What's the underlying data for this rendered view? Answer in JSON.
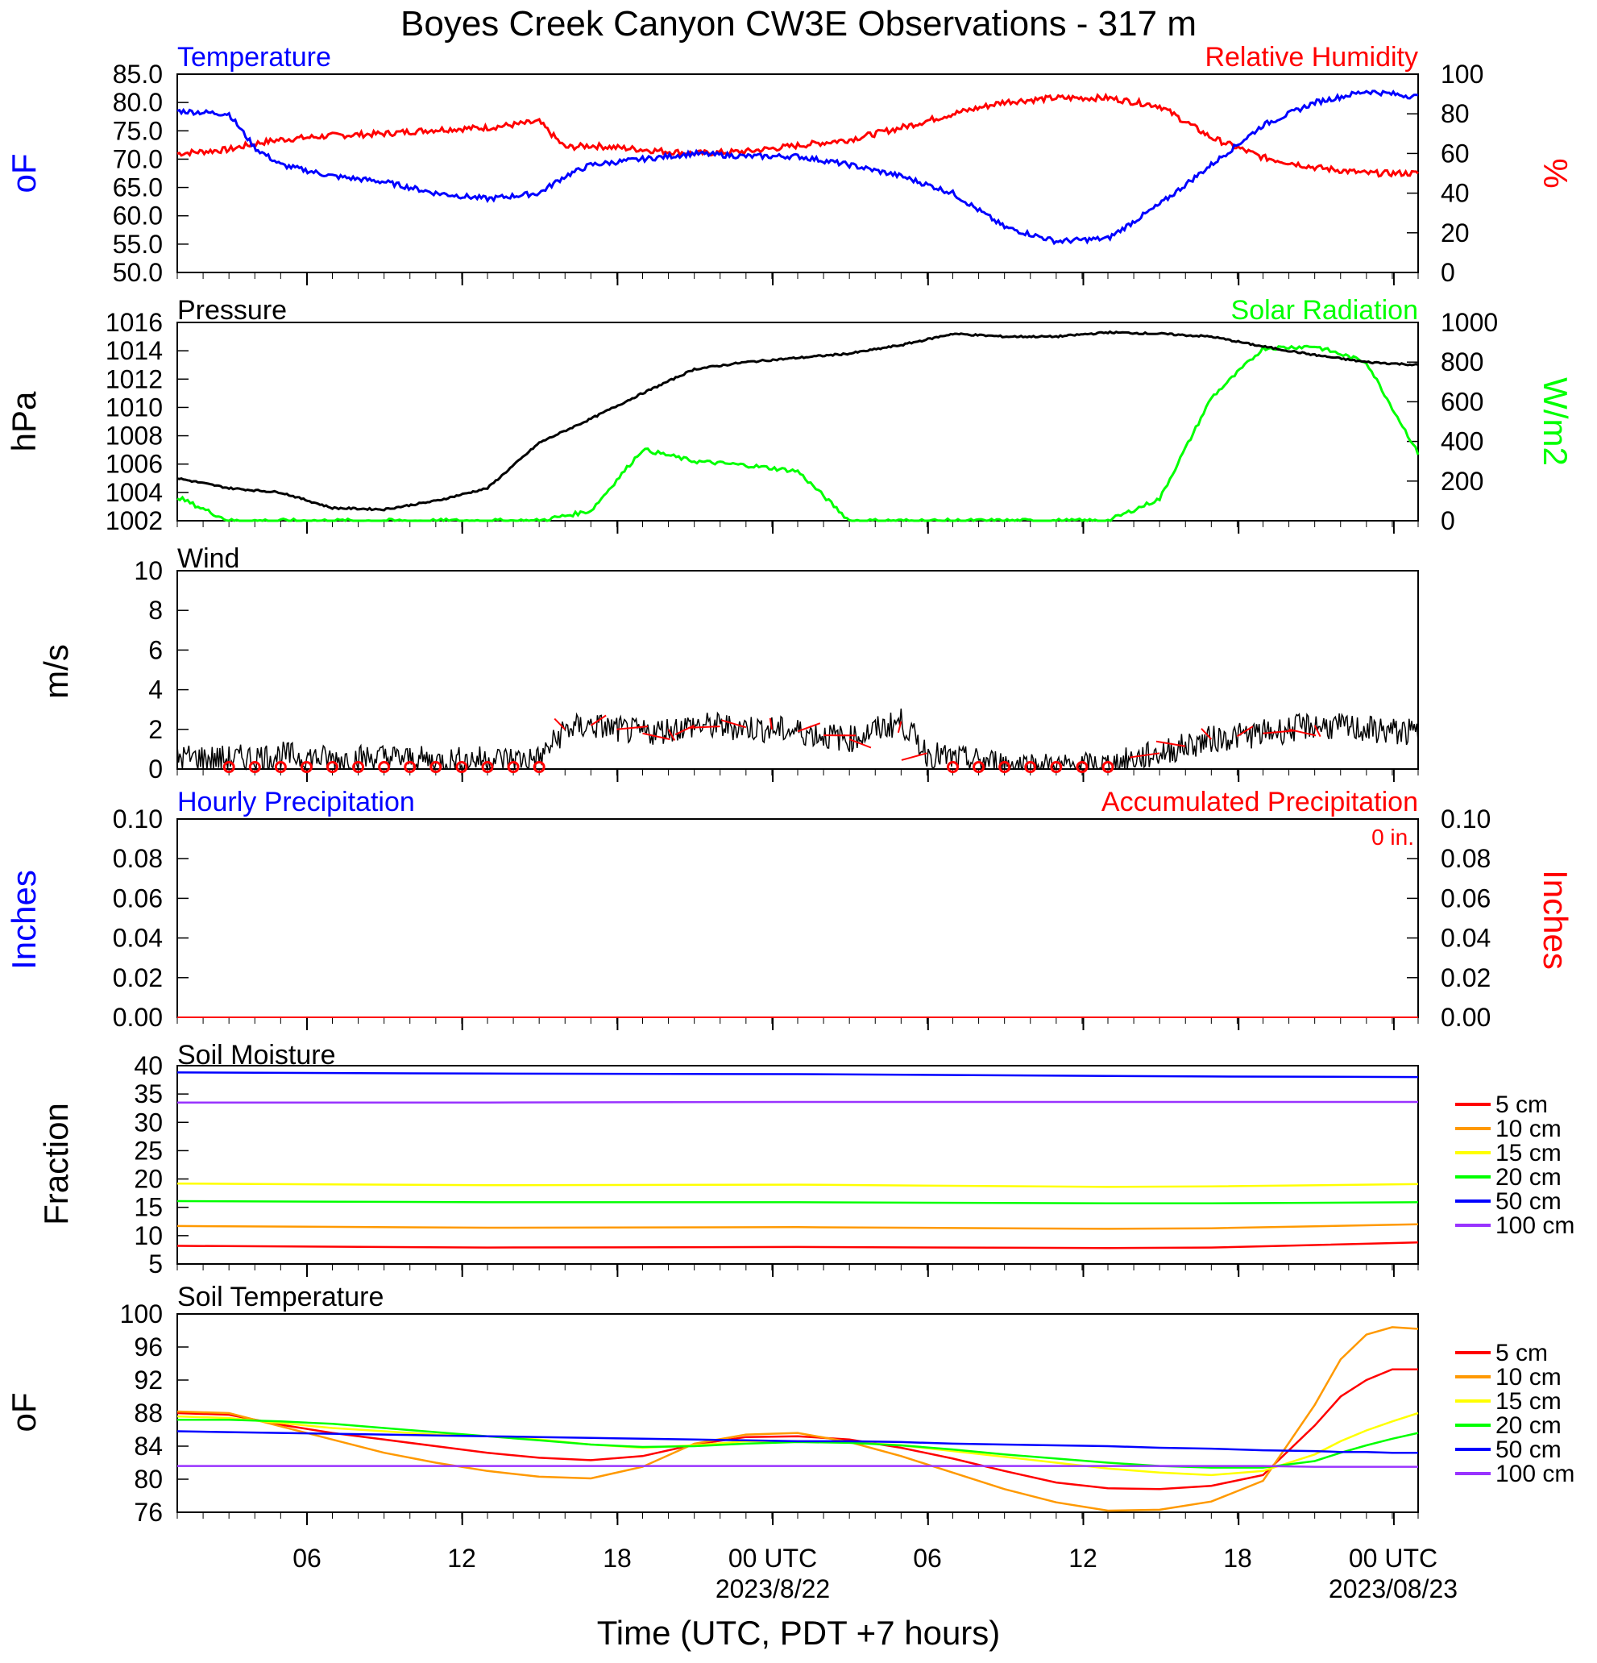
{
  "title": "Boyes Creek Canyon CW3E Observations - 317 m",
  "x_axis": {
    "label": "Time (UTC, PDT +7 hours)",
    "tick_labels": [
      "06",
      "12",
      "18",
      "00 UTC",
      "06",
      "12",
      "18",
      "00 UTC"
    ],
    "date_labels": [
      "2023/8/22",
      "2023/08/23"
    ]
  },
  "legend_soil": [
    "5 cm",
    "10 cm",
    "15 cm",
    "20 cm",
    "50 cm",
    "100 cm"
  ],
  "colors": {
    "temperature": "#0000ff",
    "humidity": "#ff0000",
    "pressure": "#000000",
    "solar": "#00ff00",
    "wind": "#000000",
    "wind_barb": "#ff0000",
    "depths": [
      "#ff0000",
      "#ff9900",
      "#ffff00",
      "#00ff00",
      "#0000ff",
      "#9933ff"
    ]
  },
  "panels": {
    "temp_rh": {
      "left_title": "Temperature",
      "right_title": "Relative Humidity",
      "left_unit": "oF",
      "right_unit": "%",
      "left_ticks": [
        "85.0",
        "80.0",
        "75.0",
        "70.0",
        "65.0",
        "60.0",
        "55.0",
        "50.0"
      ],
      "right_ticks": [
        "100",
        "80",
        "60",
        "40",
        "20",
        "0"
      ]
    },
    "pressure_solar": {
      "left_title": "Pressure",
      "right_title": "Solar Radiation",
      "left_unit": "hPa",
      "right_unit": "W/m2",
      "left_ticks": [
        "1016",
        "1014",
        "1012",
        "1010",
        "1008",
        "1006",
        "1004",
        "1002"
      ],
      "right_ticks": [
        "1000",
        "800",
        "600",
        "400",
        "200",
        "0"
      ]
    },
    "wind": {
      "left_title": "Wind",
      "left_unit": "m/s",
      "left_ticks": [
        "10",
        "8",
        "6",
        "4",
        "2",
        "0"
      ]
    },
    "precip": {
      "left_title": "Hourly Precipitation",
      "right_title": "Accumulated Precipitation",
      "accum_text": "0 in.",
      "left_unit": "Inches",
      "right_unit": "Inches",
      "left_ticks": [
        "0.10",
        "0.08",
        "0.06",
        "0.04",
        "0.02",
        "0.00"
      ],
      "right_ticks": [
        "0.10",
        "0.08",
        "0.06",
        "0.04",
        "0.02",
        "0.00"
      ]
    },
    "soil_moisture": {
      "left_title": "Soil Moisture",
      "left_unit": "Fraction",
      "left_ticks": [
        "40",
        "35",
        "30",
        "25",
        "20",
        "15",
        "10",
        "5"
      ]
    },
    "soil_temp": {
      "left_title": "Soil Temperature",
      "left_unit": "oF",
      "left_ticks": [
        "100",
        "96",
        "92",
        "88",
        "84",
        "80",
        "76"
      ]
    }
  },
  "chart_data": [
    {
      "type": "line",
      "title": "Temperature / Relative Humidity",
      "x": [
        0,
        2,
        3,
        4,
        6,
        8,
        10,
        12,
        14,
        15,
        16,
        18,
        20,
        22,
        24,
        26,
        28,
        30,
        32,
        34,
        36,
        38,
        40,
        42,
        44,
        46,
        48
      ],
      "series": [
        {
          "name": "Temperature",
          "axis": "left",
          "values": [
            78.5,
            78,
            72,
            69,
            67,
            66,
            64,
            63,
            64,
            67,
            69,
            70,
            71,
            70.5,
            70.5,
            69,
            67,
            64,
            58,
            55.5,
            56,
            62,
            69,
            76,
            80,
            82,
            81
          ]
        },
        {
          "name": "Relative Humidity",
          "axis": "right",
          "values": [
            60,
            62,
            65,
            67,
            69,
            70,
            72,
            73,
            76,
            63,
            64,
            62,
            60,
            61,
            64,
            67,
            73,
            80,
            86,
            88,
            88,
            84,
            68,
            58,
            53,
            50,
            50
          ]
        }
      ],
      "ylim_left": [
        50,
        85
      ],
      "ylim_right": [
        0,
        100
      ]
    },
    {
      "type": "line",
      "title": "Pressure / Solar Radiation",
      "x": [
        0,
        2,
        4,
        6,
        8,
        10,
        12,
        14,
        16,
        18,
        20,
        22,
        24,
        26,
        28,
        30,
        32,
        34,
        36,
        38,
        40,
        42,
        44,
        46,
        48
      ],
      "series": [
        {
          "name": "Pressure",
          "axis": "left",
          "values": [
            1005,
            1004.3,
            1004,
            1002.9,
            1002.8,
            1003.4,
            1004.3,
            1007.5,
            1009.2,
            1011,
            1012.7,
            1013.2,
            1013.5,
            1013.8,
            1014.4,
            1015.2,
            1015,
            1015,
            1015.3,
            1015.2,
            1015,
            1014.3,
            1013.7,
            1013.2,
            1013
          ]
        },
        {
          "name": "Solar Radiation",
          "axis": "right",
          "values": [
            120,
            0,
            0,
            0,
            0,
            0,
            0,
            0,
            50,
            360,
            300,
            280,
            250,
            0,
            0,
            0,
            0,
            0,
            0,
            110,
            620,
            870,
            880,
            800,
            340
          ]
        }
      ],
      "ylim_left": [
        1002,
        1016
      ],
      "ylim_right": [
        0,
        1000
      ]
    },
    {
      "type": "line",
      "title": "Wind",
      "x": [
        0,
        2,
        4,
        6,
        8,
        10,
        12,
        14,
        15,
        16,
        18,
        20,
        22,
        24,
        26,
        28,
        29,
        30,
        32,
        34,
        36,
        38,
        40,
        42,
        44,
        46,
        48
      ],
      "values": [
        0.6,
        0.5,
        0.7,
        0.5,
        0.6,
        0.4,
        0.5,
        0.5,
        2.0,
        2.2,
        1.8,
        2.2,
        2.1,
        1.9,
        1.5,
        2.4,
        0.8,
        0.5,
        0.3,
        0.1,
        0.2,
        0.8,
        1.5,
        1.8,
        2.2,
        2.0,
        1.8
      ],
      "ylim": [
        0,
        10
      ]
    },
    {
      "type": "line",
      "title": "Precipitation",
      "x": [
        0,
        48
      ],
      "series": [
        {
          "name": "Hourly Precipitation",
          "values": [
            0,
            0
          ]
        },
        {
          "name": "Accumulated Precipitation",
          "values": [
            0,
            0
          ]
        }
      ],
      "ylim": [
        0,
        0.1
      ]
    },
    {
      "type": "line",
      "title": "Soil Moisture",
      "x": [
        0,
        12,
        24,
        36,
        40,
        48
      ],
      "series": [
        {
          "name": "5 cm",
          "values": [
            8.2,
            7.9,
            8.0,
            7.8,
            7.9,
            8.8
          ]
        },
        {
          "name": "10 cm",
          "values": [
            11.7,
            11.4,
            11.5,
            11.2,
            11.3,
            12.0
          ]
        },
        {
          "name": "15 cm",
          "values": [
            19.2,
            18.9,
            19.0,
            18.6,
            18.7,
            19.1
          ]
        },
        {
          "name": "20 cm",
          "values": [
            16.1,
            15.9,
            15.9,
            15.7,
            15.7,
            15.9
          ]
        },
        {
          "name": "50 cm",
          "values": [
            38.8,
            38.6,
            38.5,
            38.2,
            38.1,
            38.0
          ]
        },
        {
          "name": "100 cm",
          "values": [
            33.5,
            33.5,
            33.6,
            33.6,
            33.6,
            33.6
          ]
        }
      ],
      "ylim": [
        5,
        40
      ]
    },
    {
      "type": "line",
      "title": "Soil Temperature",
      "x": [
        0,
        2,
        4,
        6,
        8,
        10,
        12,
        14,
        16,
        18,
        20,
        22,
        24,
        26,
        28,
        30,
        32,
        34,
        36,
        38,
        40,
        42,
        44,
        45,
        46,
        47,
        48
      ],
      "series": [
        {
          "name": "5 cm",
          "values": [
            88,
            87.8,
            86.6,
            85.6,
            84.8,
            84,
            83.2,
            82.6,
            82.3,
            82.8,
            84.2,
            85.1,
            85.2,
            84.8,
            83.8,
            82.5,
            81,
            79.6,
            78.9,
            78.8,
            79.2,
            80.5,
            86.5,
            90,
            92,
            93.3,
            93.3
          ]
        },
        {
          "name": "10 cm",
          "values": [
            88.2,
            88,
            86.4,
            84.8,
            83.2,
            82,
            81,
            80.3,
            80.1,
            81.5,
            84.3,
            85.4,
            85.6,
            84.5,
            82.8,
            80.8,
            78.8,
            77.2,
            76.2,
            76.3,
            77.3,
            79.8,
            89,
            94.5,
            97.5,
            98.4,
            98.2
          ]
        },
        {
          "name": "15 cm",
          "values": [
            87.6,
            87.4,
            86.8,
            86.2,
            85.8,
            85.4,
            85.2,
            84.8,
            84.2,
            83.8,
            84.1,
            84.6,
            84.6,
            84.5,
            84.1,
            83.4,
            82.7,
            82,
            81.3,
            80.8,
            80.5,
            81,
            83,
            84.6,
            85.9,
            87,
            88
          ]
        },
        {
          "name": "20 cm",
          "values": [
            87.2,
            87.2,
            87,
            86.7,
            86.2,
            85.7,
            85.2,
            84.7,
            84.2,
            83.9,
            84,
            84.3,
            84.5,
            84.4,
            84.1,
            83.6,
            83,
            82.5,
            82,
            81.6,
            81.4,
            81.4,
            82.2,
            83.2,
            84.1,
            84.9,
            85.6
          ]
        },
        {
          "name": "50 cm",
          "values": [
            85.8,
            85.7,
            85.6,
            85.5,
            85.4,
            85.3,
            85.2,
            85.1,
            85,
            84.9,
            84.8,
            84.7,
            84.6,
            84.6,
            84.5,
            84.3,
            84.2,
            84.1,
            84,
            83.8,
            83.7,
            83.5,
            83.4,
            83.3,
            83.3,
            83.2,
            83.2
          ]
        },
        {
          "name": "100 cm",
          "values": [
            81.6,
            81.6,
            81.6,
            81.6,
            81.6,
            81.6,
            81.6,
            81.6,
            81.6,
            81.6,
            81.6,
            81.6,
            81.6,
            81.6,
            81.6,
            81.6,
            81.6,
            81.6,
            81.6,
            81.6,
            81.6,
            81.6,
            81.5,
            81.5,
            81.5,
            81.5,
            81.5
          ]
        }
      ],
      "ylim": [
        76,
        100
      ]
    }
  ]
}
